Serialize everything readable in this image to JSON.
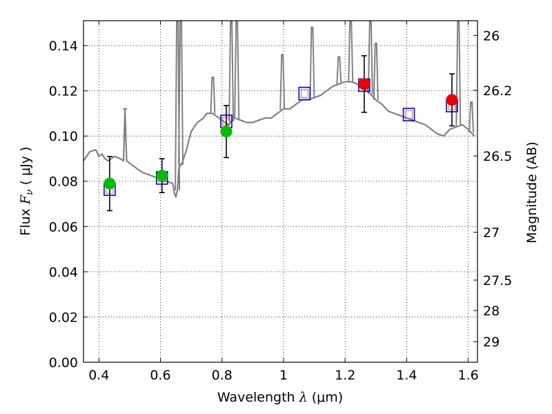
{
  "chart_data": {
    "type": "scatter",
    "xlabel_prefix": "Wavelength  ",
    "xlabel_symbol": "λ",
    "xlabel_unit": " (μm)",
    "ylabel_prefix": "Flux  ",
    "ylabel_symbol": "F",
    "ylabel_subscript": "ν",
    "ylabel_unit": "  ( μJy )",
    "y2label": "Magnitude (AB)",
    "xlim": [
      0.35,
      1.63
    ],
    "ylim": [
      0.0,
      0.151
    ],
    "grid": true,
    "x_ticks": [
      {
        "value": 0.4,
        "label": "0.4"
      },
      {
        "value": 0.6,
        "label": "0.6"
      },
      {
        "value": 0.8,
        "label": "0.8"
      },
      {
        "value": 1.0,
        "label": "1"
      },
      {
        "value": 1.2,
        "label": "1.2"
      },
      {
        "value": 1.4,
        "label": "1.4"
      },
      {
        "value": 1.6,
        "label": "1.6"
      }
    ],
    "y_ticks": [
      {
        "value": 0.0,
        "label": "0.00"
      },
      {
        "value": 0.02,
        "label": "0.02"
      },
      {
        "value": 0.04,
        "label": "0.04"
      },
      {
        "value": 0.06,
        "label": "0.06"
      },
      {
        "value": 0.08,
        "label": "0.08"
      },
      {
        "value": 0.1,
        "label": "0.10"
      },
      {
        "value": 0.12,
        "label": "0.12"
      },
      {
        "value": 0.14,
        "label": "0.14"
      }
    ],
    "y2_ticks": [
      {
        "flux": 0.1445,
        "label": "26"
      },
      {
        "flux": 0.1202,
        "label": "26.2"
      },
      {
        "flux": 0.0912,
        "label": "26.5"
      },
      {
        "flux": 0.0575,
        "label": "27"
      },
      {
        "flux": 0.0363,
        "label": "27.5"
      },
      {
        "flux": 0.0229,
        "label": "28"
      },
      {
        "flux": 0.0091,
        "label": "29"
      }
    ],
    "colors": {
      "model": "#808080",
      "green": "#00bb00",
      "red": "#ee0000",
      "box": "#0000cc",
      "box_inner": "#cc0000",
      "err": "#000000"
    },
    "series": [
      {
        "kind": "model_spectrum",
        "x": [
          0.35,
          0.37,
          0.39,
          0.4,
          0.41,
          0.42,
          0.43,
          0.44,
          0.45,
          0.47,
          0.48,
          0.485,
          0.49,
          0.5,
          0.52,
          0.54,
          0.56,
          0.58,
          0.6,
          0.62,
          0.64,
          0.645,
          0.65,
          0.655,
          0.66,
          0.67,
          0.68,
          0.685,
          0.69,
          0.7,
          0.72,
          0.74,
          0.75,
          0.77,
          0.8,
          0.82,
          0.84,
          0.86,
          0.88,
          0.9,
          0.92,
          0.94,
          0.96,
          0.98,
          1.0,
          1.02,
          1.04,
          1.06,
          1.08,
          1.1,
          1.12,
          1.14,
          1.16,
          1.18,
          1.2,
          1.22,
          1.24,
          1.26,
          1.28,
          1.3,
          1.32,
          1.34,
          1.36,
          1.38,
          1.4,
          1.42,
          1.44,
          1.46,
          1.48,
          1.5,
          1.52,
          1.54,
          1.56,
          1.58,
          1.6,
          1.62
        ],
        "y": [
          0.089,
          0.093,
          0.094,
          0.091,
          0.092,
          0.09,
          0.089,
          0.09,
          0.091,
          0.09,
          0.089,
          0.112,
          0.089,
          0.088,
          0.086,
          0.084,
          0.083,
          0.082,
          0.081,
          0.08,
          0.079,
          0.075,
          0.073,
          0.076,
          0.086,
          0.088,
          0.092,
          0.094,
          0.097,
          0.102,
          0.106,
          0.108,
          0.11,
          0.11,
          0.107,
          0.105,
          0.108,
          0.107,
          0.106,
          0.106,
          0.107,
          0.108,
          0.108,
          0.11,
          0.112,
          0.112,
          0.114,
          0.116,
          0.116,
          0.117,
          0.118,
          0.12,
          0.122,
          0.123,
          0.124,
          0.124,
          0.123,
          0.121,
          0.119,
          0.116,
          0.114,
          0.111,
          0.11,
          0.109,
          0.108,
          0.107,
          0.106,
          0.105,
          0.103,
          0.101,
          0.1,
          0.103,
          0.104,
          0.105,
          0.103,
          0.1
        ]
      },
      {
        "kind": "model_lines",
        "lines": [
          {
            "x": 0.485,
            "peak": 0.112
          },
          {
            "x": 0.655,
            "peak": 0.151
          },
          {
            "x": 0.666,
            "peak": 0.151
          },
          {
            "x": 0.77,
            "peak": 0.126
          },
          {
            "x": 0.83,
            "peak": 0.151
          },
          {
            "x": 0.848,
            "peak": 0.151
          },
          {
            "x": 0.996,
            "peak": 0.136
          },
          {
            "x": 1.093,
            "peak": 0.148
          },
          {
            "x": 1.18,
            "peak": 0.135
          },
          {
            "x": 1.218,
            "peak": 0.151
          },
          {
            "x": 1.282,
            "peak": 0.151
          },
          {
            "x": 1.3,
            "peak": 0.141
          },
          {
            "x": 1.568,
            "peak": 0.151
          },
          {
            "x": 1.61,
            "peak": 0.115
          }
        ]
      },
      {
        "kind": "boxes",
        "x": [
          0.435,
          0.605,
          0.814,
          1.068,
          1.262,
          1.407,
          1.547
        ],
        "y": [
          0.0765,
          0.0815,
          0.1065,
          0.1188,
          0.1225,
          0.1095,
          0.1135
        ]
      },
      {
        "kind": "green_points",
        "x": [
          0.435,
          0.605,
          0.814
        ],
        "y": [
          0.079,
          0.0825,
          0.102
        ],
        "err": [
          0.012,
          0.0075,
          0.0115
        ]
      },
      {
        "kind": "red_points",
        "x": [
          1.262,
          1.547
        ],
        "y": [
          0.123,
          0.116
        ],
        "err": [
          0.0125,
          0.0115
        ]
      }
    ]
  }
}
